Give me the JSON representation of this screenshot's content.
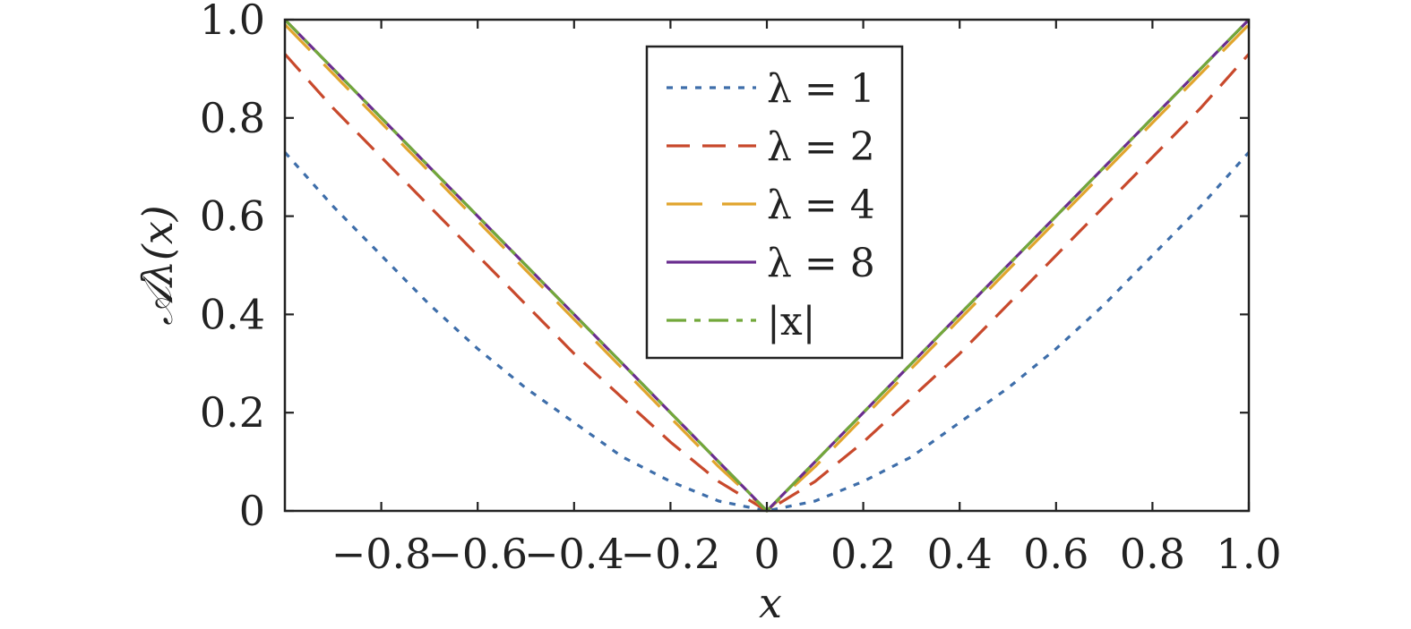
{
  "chart_data": {
    "type": "line",
    "xlabel": "x",
    "ylabel": "𝒜λ(x)",
    "xlim": [
      -1.0,
      1.0
    ],
    "ylim": [
      0,
      1.0
    ],
    "grid": false,
    "legend_position": "top-center",
    "x_ticks": [
      {
        "value": -0.8,
        "label": "−0.8"
      },
      {
        "value": -0.6,
        "label": "−0.6"
      },
      {
        "value": -0.4,
        "label": "−0.4"
      },
      {
        "value": -0.2,
        "label": "−0.2"
      },
      {
        "value": 0,
        "label": "0"
      },
      {
        "value": 0.2,
        "label": "0.2"
      },
      {
        "value": 0.4,
        "label": "0.4"
      },
      {
        "value": 0.6,
        "label": "0.6"
      },
      {
        "value": 0.8,
        "label": "0.8"
      },
      {
        "value": 1.0,
        "label": "1.0"
      }
    ],
    "y_ticks": [
      {
        "value": 0,
        "label": "0"
      },
      {
        "value": 0.2,
        "label": "0.2"
      },
      {
        "value": 0.4,
        "label": "0.4"
      },
      {
        "value": 0.6,
        "label": "0.6"
      },
      {
        "value": 0.8,
        "label": "0.8"
      },
      {
        "value": 1.0,
        "label": "1.0"
      }
    ],
    "x": [
      -1.0,
      -0.9,
      -0.8,
      -0.7,
      -0.6,
      -0.5,
      -0.4,
      -0.3,
      -0.2,
      -0.1,
      0,
      0.1,
      0.2,
      0.3,
      0.4,
      0.5,
      0.6,
      0.7,
      0.8,
      0.9,
      1.0
    ],
    "series": [
      {
        "name": "λ = 1",
        "color": "#3e6eaa",
        "dash": "dotted",
        "values": [
          0.73,
          0.62,
          0.52,
          0.42,
          0.33,
          0.25,
          0.18,
          0.11,
          0.06,
          0.02,
          0.0,
          0.02,
          0.06,
          0.11,
          0.18,
          0.25,
          0.33,
          0.42,
          0.52,
          0.62,
          0.73
        ]
      },
      {
        "name": "λ = 2",
        "color": "#c8492c",
        "dash": "dashed",
        "values": [
          0.93,
          0.82,
          0.72,
          0.62,
          0.52,
          0.42,
          0.32,
          0.23,
          0.14,
          0.06,
          0.0,
          0.06,
          0.14,
          0.23,
          0.32,
          0.42,
          0.52,
          0.62,
          0.72,
          0.82,
          0.93
        ]
      },
      {
        "name": "λ = 4",
        "color": "#e1a52d",
        "dash": "long-dashed",
        "values": [
          0.99,
          0.89,
          0.79,
          0.69,
          0.59,
          0.49,
          0.39,
          0.29,
          0.19,
          0.09,
          0.0,
          0.09,
          0.19,
          0.29,
          0.39,
          0.49,
          0.59,
          0.69,
          0.79,
          0.89,
          0.99
        ]
      },
      {
        "name": "λ = 8",
        "color": "#6a2d8f",
        "dash": "solid",
        "values": [
          1.0,
          0.9,
          0.8,
          0.7,
          0.6,
          0.5,
          0.4,
          0.3,
          0.2,
          0.1,
          0.0,
          0.1,
          0.2,
          0.3,
          0.4,
          0.5,
          0.6,
          0.7,
          0.8,
          0.9,
          1.0
        ]
      },
      {
        "name": "|x|",
        "color": "#72a83a",
        "dash": "dash-dot",
        "values": [
          1.0,
          0.9,
          0.8,
          0.7,
          0.6,
          0.5,
          0.4,
          0.3,
          0.2,
          0.1,
          0.0,
          0.1,
          0.2,
          0.3,
          0.4,
          0.5,
          0.6,
          0.7,
          0.8,
          0.9,
          1.0
        ]
      }
    ]
  }
}
